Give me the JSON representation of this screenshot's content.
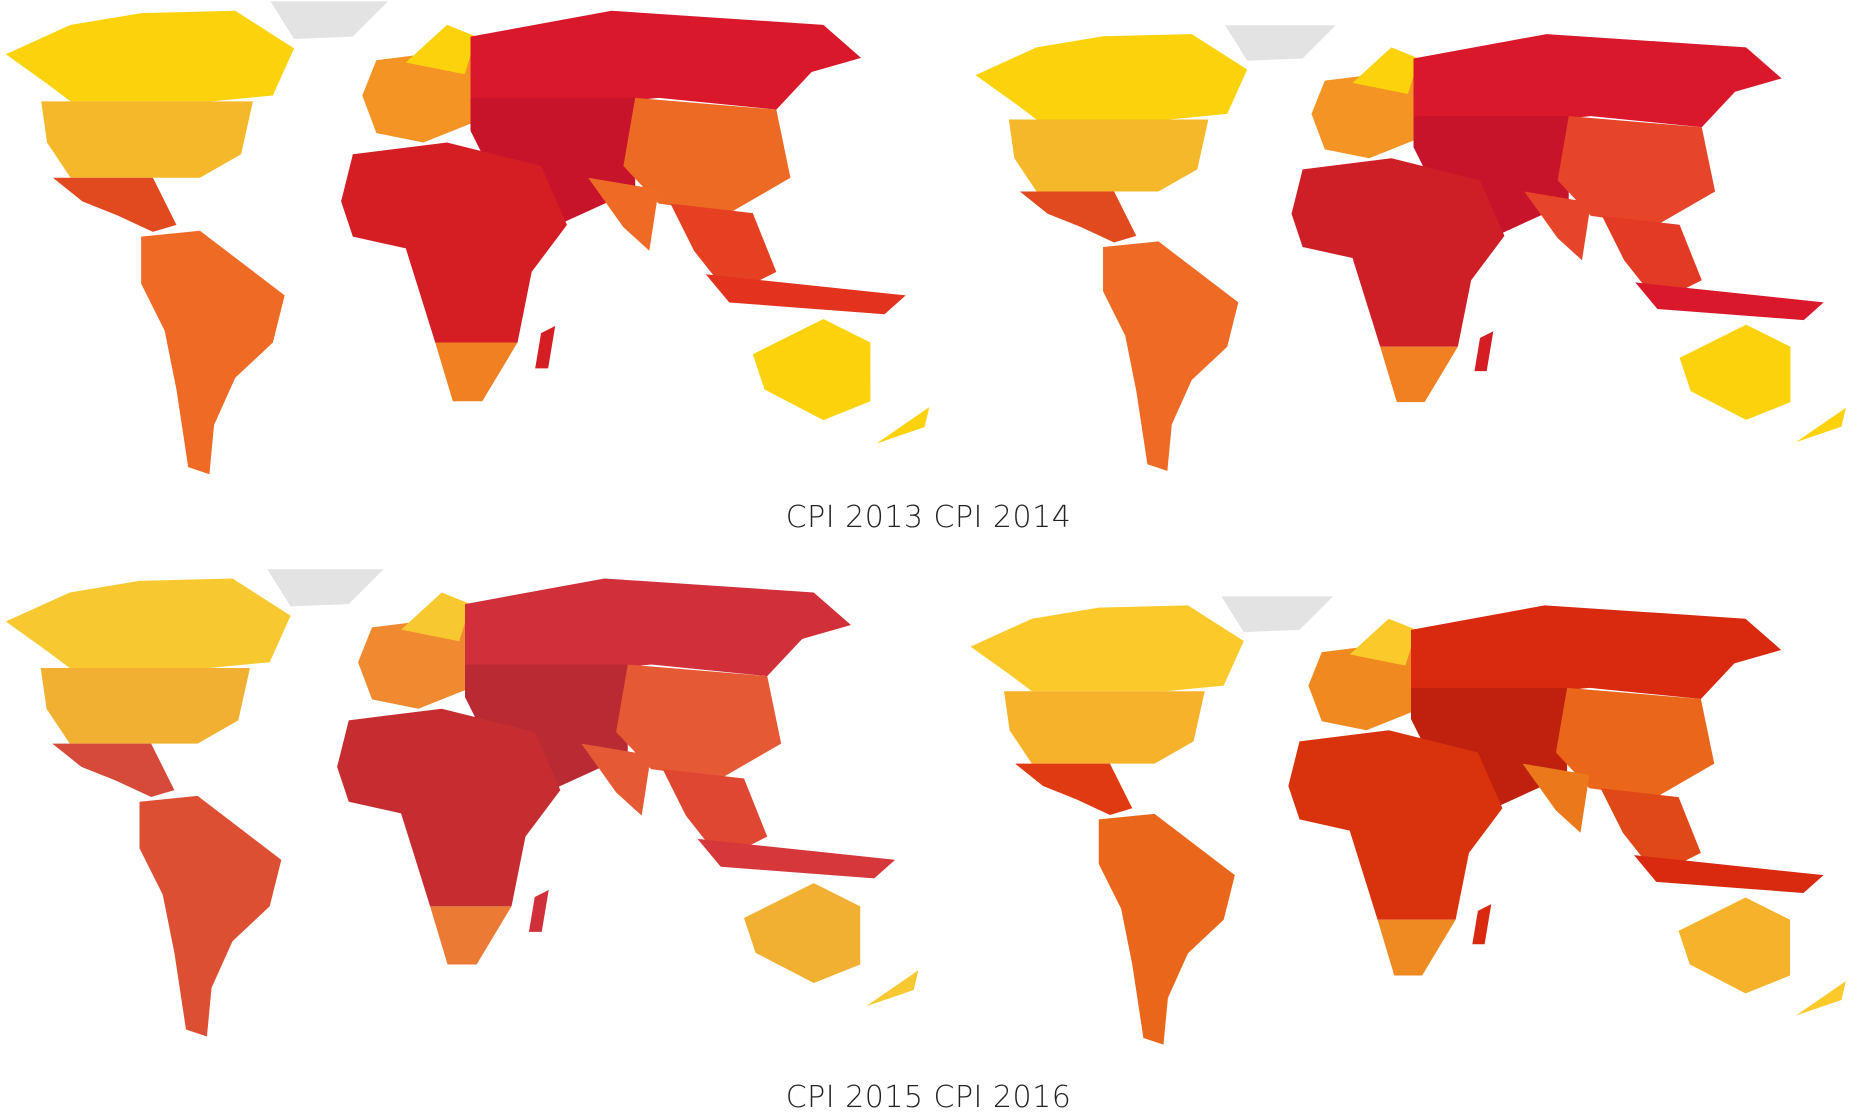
{
  "captions": [
    "CPI 2013 CPI 2014",
    "CPI 2015 CPI 2016"
  ]
}
